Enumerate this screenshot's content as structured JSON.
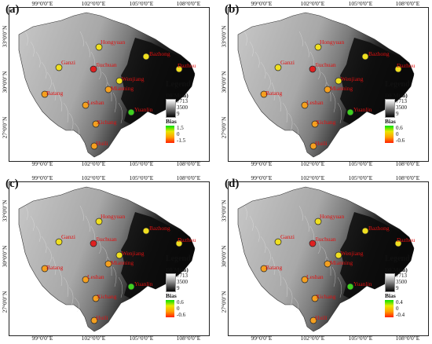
{
  "panels": [
    {
      "id": "a",
      "letter": "(a)",
      "legend": {
        "title": "Legend",
        "dem_label": "DEM(m)",
        "dem_max": "7713",
        "dem_mid": "3500",
        "dem_min": "9",
        "bias_label": "Bias",
        "bias_max": "1.5",
        "bias_mid": "0",
        "bias_min": "-1.5"
      },
      "station_colors": [
        "#f0e020",
        "#f0e020",
        "#e02020",
        "#f0e020",
        "#f0e020",
        "#f0e020",
        "#f4a020",
        "#f4a020",
        "#f4a020",
        "#f4a020",
        "#40d020",
        "#f4a020"
      ]
    },
    {
      "id": "b",
      "letter": "(b)",
      "legend": {
        "title": "Legend",
        "dem_label": "DEM(m)",
        "dem_max": "7713",
        "dem_mid": "3500",
        "dem_min": "9",
        "bias_label": "Bias",
        "bias_max": "0.6",
        "bias_mid": "0",
        "bias_min": "-0.6"
      },
      "station_colors": [
        "#f0e020",
        "#f0e020",
        "#e02020",
        "#f0e020",
        "#f0e020",
        "#f0e020",
        "#f4a020",
        "#f4a020",
        "#f4a020",
        "#f4a020",
        "#40d020",
        "#f4a020"
      ]
    },
    {
      "id": "c",
      "letter": "(c)",
      "legend": {
        "title": "Legend",
        "dem_label": "DEM(m)",
        "dem_max": "7713",
        "dem_mid": "3500",
        "dem_min": "9",
        "bias_label": "Bias",
        "bias_max": "0.6",
        "bias_mid": "0",
        "bias_min": "-0.6"
      },
      "station_colors": [
        "#f0e020",
        "#f0e020",
        "#e02020",
        "#f0e020",
        "#f0e020",
        "#f0e020",
        "#f4a020",
        "#f4a020",
        "#f4a020",
        "#f4a020",
        "#40d020",
        "#f4a020"
      ]
    },
    {
      "id": "d",
      "letter": "(d)",
      "legend": {
        "title": "Legend",
        "dem_label": "DEM(m)",
        "dem_max": "7713",
        "dem_mid": "3500",
        "dem_min": "9",
        "bias_label": "Bias",
        "bias_max": "0.4",
        "bias_mid": "0",
        "bias_min": "-0.4"
      },
      "station_colors": [
        "#f0e020",
        "#f0e020",
        "#e02020",
        "#f0e020",
        "#f0e020",
        "#f0e020",
        "#f4a020",
        "#f4a020",
        "#f4a020",
        "#f4a020",
        "#40d020",
        "#f4a020"
      ]
    }
  ],
  "lon_ticks": [
    "99°0'0\"E",
    "102°0'0\"E",
    "105°0'0\"E",
    "108°0'0\"E"
  ],
  "lat_ticks": [
    "33°0'0\"N",
    "30°0'0\"N",
    "27°0'0\"N"
  ],
  "stations": [
    "Hongyuan",
    "Ganzi",
    "Jiuchuan",
    "Bazhong",
    "Wenjiang",
    "Dazhou",
    "Batang",
    "Mianning",
    "Leshan",
    "Xichang",
    "Yuanlin",
    "Huili"
  ]
}
